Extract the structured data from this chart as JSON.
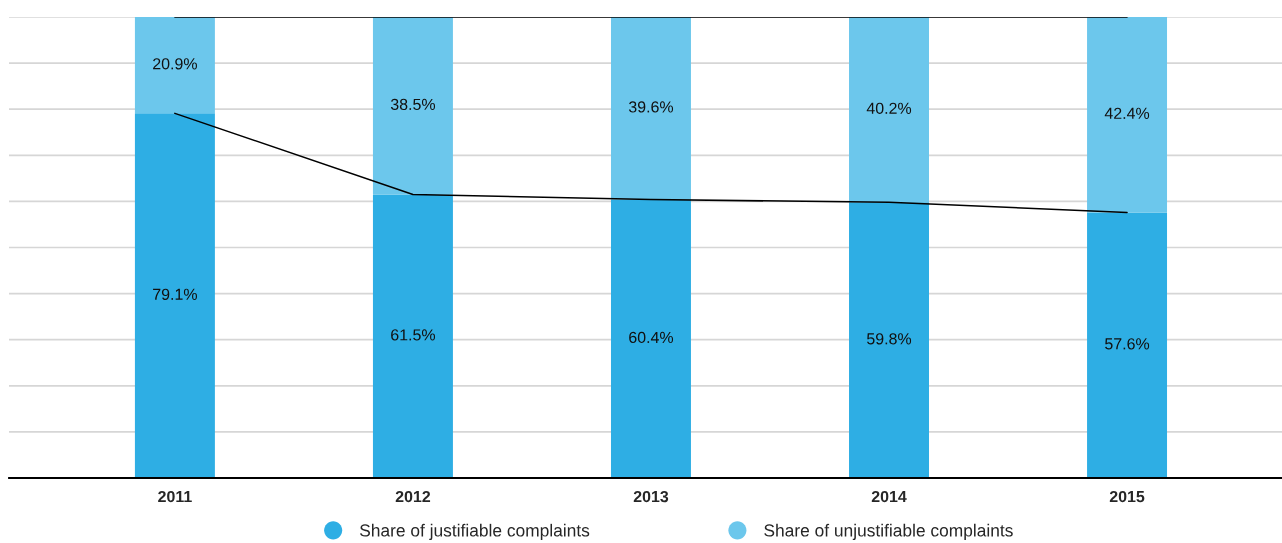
{
  "chart_data": {
    "type": "bar",
    "stacked": true,
    "categories": [
      "2011",
      "2012",
      "2013",
      "2014",
      "2015"
    ],
    "series": [
      {
        "name": "Share of justifiable complaints",
        "color": "#2eaee4",
        "values": [
          79.1,
          61.5,
          60.4,
          59.8,
          57.6
        ],
        "value_labels": [
          "79.1%",
          "61.5%",
          "60.4%",
          "59.8%",
          "57.6%"
        ]
      },
      {
        "name": "Share of unjustifiable complaints",
        "color": "#6cc7ec",
        "values": [
          20.9,
          38.5,
          39.6,
          40.2,
          42.4
        ],
        "value_labels": [
          "20.9%",
          "38.5%",
          "39.6%",
          "40.2%",
          "42.4%"
        ]
      },
      {
        "type": "line",
        "color": "#000000",
        "values": [
          79.1,
          61.5,
          60.4,
          59.8,
          57.6
        ]
      },
      {
        "type": "line",
        "color": "#000000",
        "values": [
          100,
          100,
          100,
          100,
          100
        ]
      }
    ],
    "ylim": [
      0,
      100
    ],
    "yticks": [
      {
        "value": 0,
        "label": null
      },
      {
        "value": 10,
        "label": null
      },
      {
        "value": 20,
        "label": null
      },
      {
        "value": 30,
        "label": null
      },
      {
        "value": 40,
        "label": null
      },
      {
        "value": 50,
        "label": null
      },
      {
        "value": 60,
        "label": null
      },
      {
        "value": 70,
        "label": null
      },
      {
        "value": 80,
        "label": null
      },
      {
        "value": 90,
        "label": null
      },
      {
        "value": 100,
        "label": null
      }
    ],
    "tick_labels": "x",
    "grid": "y",
    "legend": "bottom"
  }
}
